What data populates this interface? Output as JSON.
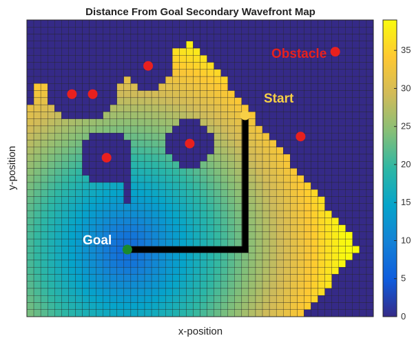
{
  "chart_data": {
    "type": "heatmap",
    "title": "Distance From Goal Secondary Wavefront Map",
    "xlabel": "x-position",
    "ylabel": "y-position",
    "grid": true,
    "colormap": "parula",
    "colorbar": {
      "min": 0,
      "max": 39,
      "ticks": [
        0,
        5,
        10,
        15,
        20,
        25,
        30,
        35
      ],
      "tick_labels": [
        "0",
        "5",
        "10",
        "15",
        "20",
        "25",
        "30",
        "35"
      ],
      "colors": [
        "#352a87",
        "#0f5cdd",
        "#1481d6",
        "#06a4ca",
        "#2eb7a4",
        "#87bf77",
        "#d1bb59",
        "#fec832",
        "#f9fb0e"
      ]
    },
    "grid_size": {
      "cols": 50,
      "rows": 42
    },
    "goal": {
      "label": "Goal",
      "cell": [
        14,
        32
      ],
      "color": "#1a8a2e"
    },
    "start": {
      "label": "Start",
      "cell": [
        31,
        13
      ],
      "color": "#f7d046"
    },
    "obstacles": {
      "label": "Obstacle",
      "color": "#e8201e",
      "centers": [
        [
          6,
          10
        ],
        [
          9,
          10
        ],
        [
          17,
          6
        ],
        [
          11,
          19
        ],
        [
          23,
          17
        ],
        [
          39,
          16
        ],
        [
          44,
          4
        ]
      ],
      "radius": [
        3.3,
        3.3,
        3.5,
        3.8,
        3.6,
        0,
        0
      ]
    },
    "path": {
      "color": "#000000",
      "cells": [
        [
          31,
          13
        ],
        [
          31,
          32
        ],
        [
          14,
          32
        ]
      ]
    }
  }
}
